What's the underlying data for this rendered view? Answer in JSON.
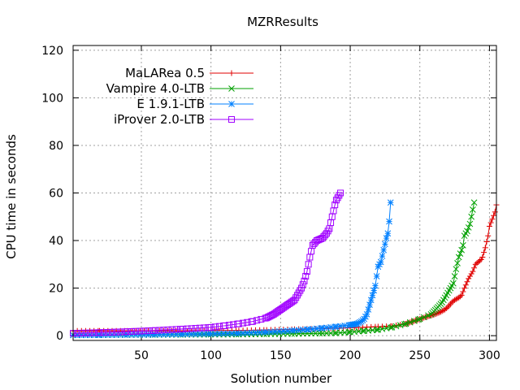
{
  "chart_data": {
    "type": "line",
    "title": "MZRResults",
    "xlabel": "Solution number",
    "ylabel": "CPU time in seconds",
    "xlim": [
      1,
      305
    ],
    "ylim": [
      -2,
      122
    ],
    "xticks": [
      50,
      100,
      150,
      200,
      250,
      300
    ],
    "xtick_labels": [
      "50",
      "100",
      "150",
      "200",
      "250",
      "300"
    ],
    "yticks": [
      0,
      20,
      40,
      60,
      80,
      100,
      120
    ],
    "ytick_labels": [
      "0",
      "20",
      "40",
      "60",
      "80",
      "100",
      "120"
    ],
    "grid": true,
    "legend_position": "top-left",
    "series": [
      {
        "name": "MaLARea 0.5",
        "color": "#e00000",
        "marker": "plus",
        "points": [
          [
            1,
            2
          ],
          [
            20,
            2
          ],
          [
            40,
            2
          ],
          [
            60,
            2
          ],
          [
            80,
            2
          ],
          [
            100,
            2.1
          ],
          [
            120,
            2.2
          ],
          [
            140,
            2.4
          ],
          [
            160,
            2.7
          ],
          [
            180,
            3
          ],
          [
            200,
            3.3
          ],
          [
            220,
            3.8
          ],
          [
            230,
            4
          ],
          [
            240,
            5
          ],
          [
            245,
            6
          ],
          [
            250,
            7
          ],
          [
            255,
            8
          ],
          [
            260,
            8.8
          ],
          [
            265,
            10
          ],
          [
            268,
            11
          ],
          [
            270,
            12
          ],
          [
            273,
            14
          ],
          [
            275,
            15
          ],
          [
            278,
            16
          ],
          [
            280,
            17
          ],
          [
            282,
            20
          ],
          [
            285,
            24
          ],
          [
            288,
            27
          ],
          [
            290,
            30
          ],
          [
            292,
            31
          ],
          [
            294,
            32
          ],
          [
            295,
            33
          ],
          [
            297,
            37
          ],
          [
            299,
            42
          ],
          [
            300,
            46
          ],
          [
            302,
            49
          ],
          [
            304,
            52
          ],
          [
            305,
            55
          ]
        ]
      },
      {
        "name": "Vampire 4.0-LTB",
        "color": "#00a000",
        "marker": "cross",
        "points": [
          [
            1,
            0.3
          ],
          [
            20,
            0.3
          ],
          [
            40,
            0.35
          ],
          [
            60,
            0.4
          ],
          [
            80,
            0.45
          ],
          [
            100,
            0.5
          ],
          [
            120,
            0.55
          ],
          [
            140,
            0.7
          ],
          [
            160,
            0.8
          ],
          [
            180,
            1
          ],
          [
            190,
            1.1
          ],
          [
            200,
            1.5
          ],
          [
            210,
            2
          ],
          [
            220,
            2.5
          ],
          [
            230,
            3.5
          ],
          [
            240,
            5
          ],
          [
            250,
            7
          ],
          [
            258,
            9
          ],
          [
            263,
            12
          ],
          [
            266,
            14
          ],
          [
            268,
            16
          ],
          [
            271,
            19
          ],
          [
            274,
            22
          ],
          [
            276,
            28
          ],
          [
            278,
            33
          ],
          [
            280,
            36
          ],
          [
            281,
            38
          ],
          [
            282,
            42
          ],
          [
            284,
            44
          ],
          [
            286,
            47
          ],
          [
            288,
            53
          ],
          [
            289,
            56
          ]
        ]
      },
      {
        "name": "E 1.9.1-LTB",
        "color": "#0080ff",
        "marker": "star",
        "points": [
          [
            1,
            0.2
          ],
          [
            20,
            0.3
          ],
          [
            40,
            0.4
          ],
          [
            60,
            0.5
          ],
          [
            80,
            0.6
          ],
          [
            100,
            0.8
          ],
          [
            120,
            1
          ],
          [
            140,
            1.5
          ],
          [
            160,
            2.2
          ],
          [
            170,
            2.6
          ],
          [
            180,
            3.2
          ],
          [
            190,
            3.8
          ],
          [
            200,
            4.5
          ],
          [
            205,
            5
          ],
          [
            208,
            6
          ],
          [
            210,
            7
          ],
          [
            212,
            9
          ],
          [
            214,
            13
          ],
          [
            216,
            17
          ],
          [
            218,
            21
          ],
          [
            220,
            29
          ],
          [
            222,
            31
          ],
          [
            224,
            36
          ],
          [
            226,
            41
          ],
          [
            227,
            43
          ],
          [
            228,
            48
          ],
          [
            229,
            56
          ]
        ]
      },
      {
        "name": "iProver 2.0-LTB",
        "color": "#a000ff",
        "marker": "square",
        "points": [
          [
            1,
            1
          ],
          [
            20,
            1.3
          ],
          [
            40,
            1.7
          ],
          [
            60,
            2.2
          ],
          [
            80,
            2.8
          ],
          [
            100,
            3.5
          ],
          [
            110,
            4.2
          ],
          [
            120,
            5
          ],
          [
            130,
            6
          ],
          [
            140,
            7.5
          ],
          [
            145,
            9
          ],
          [
            150,
            11
          ],
          [
            155,
            13
          ],
          [
            160,
            15
          ],
          [
            163,
            18
          ],
          [
            165,
            20
          ],
          [
            167,
            23
          ],
          [
            169,
            27
          ],
          [
            171,
            33
          ],
          [
            173,
            38
          ],
          [
            176,
            40
          ],
          [
            180,
            41
          ],
          [
            183,
            43
          ],
          [
            185,
            45
          ],
          [
            187,
            50
          ],
          [
            189,
            55
          ],
          [
            190,
            57
          ],
          [
            192,
            59
          ],
          [
            193,
            60
          ]
        ]
      }
    ]
  }
}
